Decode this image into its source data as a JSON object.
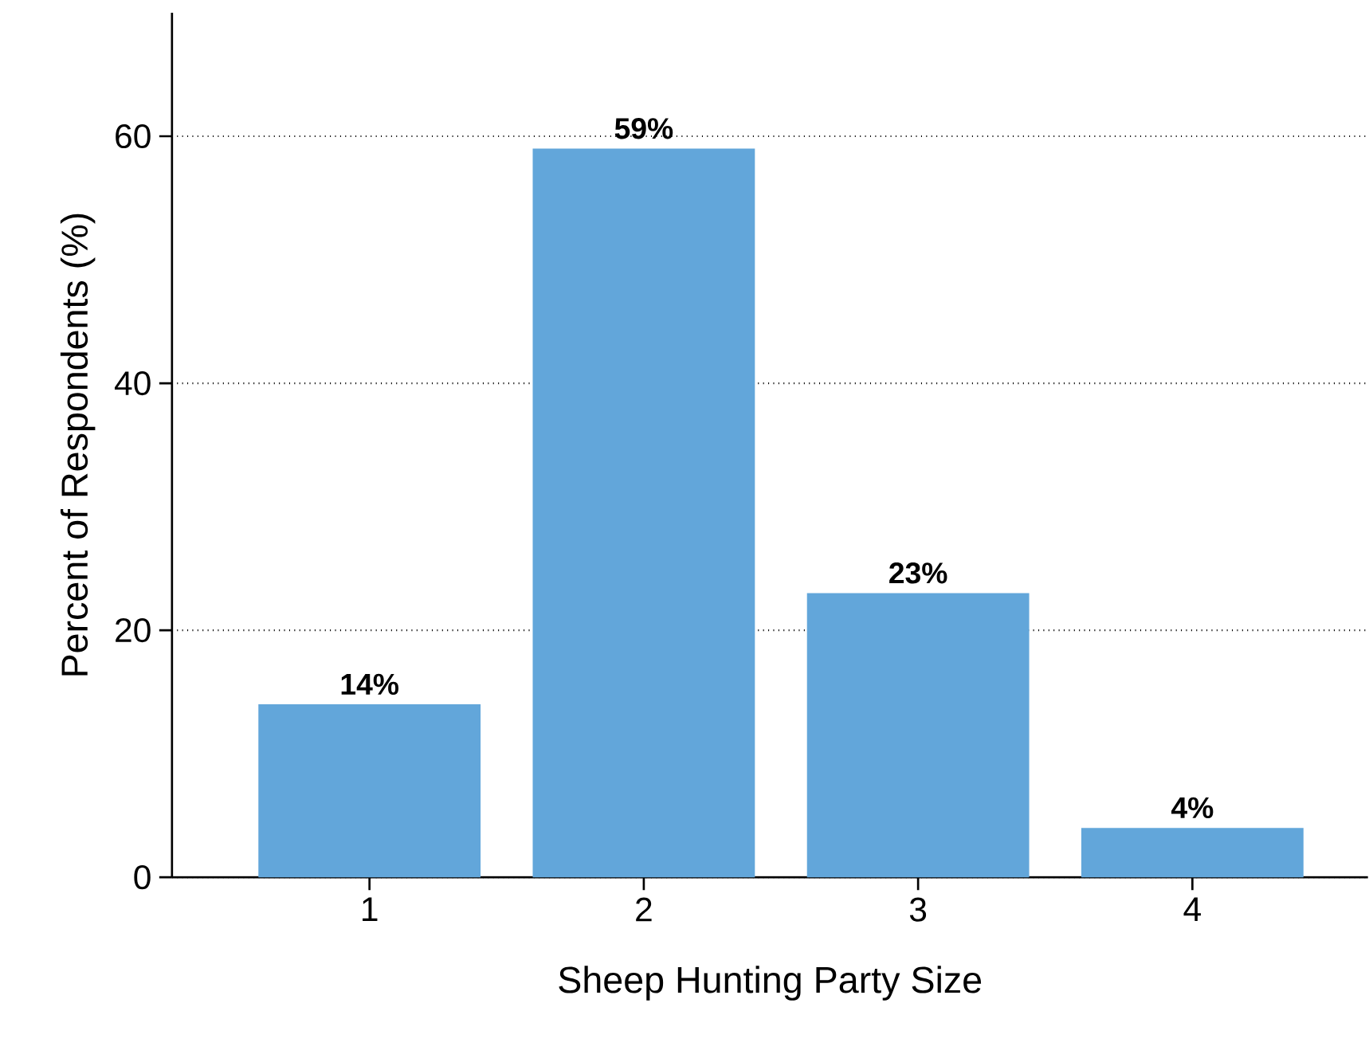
{
  "chart_data": {
    "type": "bar",
    "xlabel": "Sheep Hunting Party Size",
    "ylabel": "Percent of Respondents (%)",
    "categories": [
      "1",
      "2",
      "3",
      "4"
    ],
    "values": [
      14,
      59,
      23,
      4
    ],
    "value_labels": [
      "14%",
      "59%",
      "23%",
      "4%"
    ],
    "color": "#62a6da",
    "ylim": [
      0,
      70
    ],
    "yticks": [
      0,
      20,
      40,
      60
    ],
    "grid": "y"
  }
}
